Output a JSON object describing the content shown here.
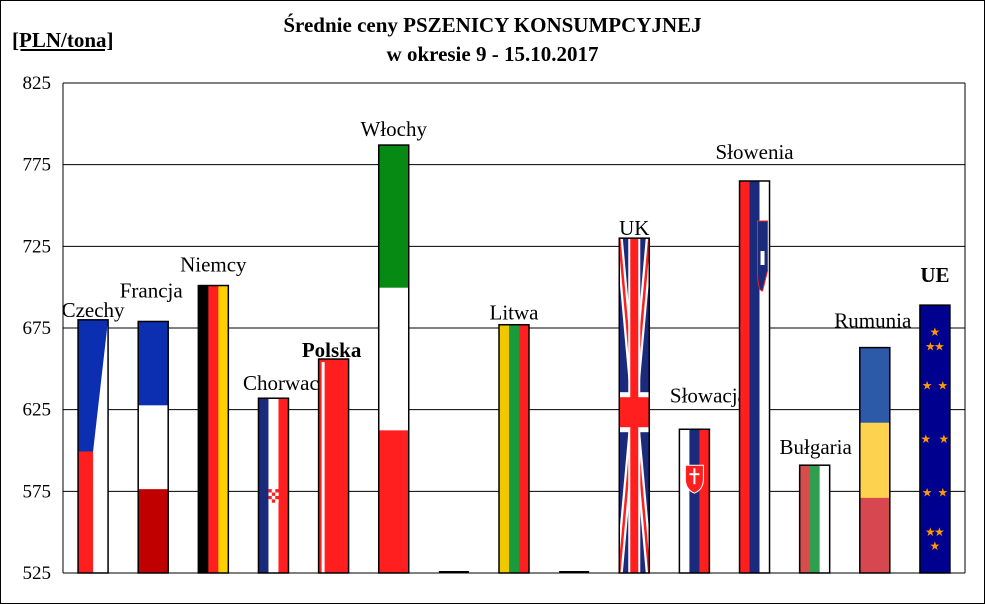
{
  "chart_data": {
    "type": "bar",
    "title_line1": "Średnie ceny PSZENICY KONSUMPCYJNEJ",
    "title_line2": "w okresie  9 - 15.10.2017",
    "ylabel": "[PLN/tona]",
    "ylim": [
      525,
      825
    ],
    "yticks": [
      525,
      575,
      625,
      675,
      725,
      775,
      825
    ],
    "grid": true,
    "categories": [
      "Czechy",
      "Francja",
      "Niemcy",
      "Chorwacja",
      "Polska",
      "Włochy",
      "",
      "Litwa",
      "",
      "UK",
      "Słowacja",
      "Słowenia",
      "Bułgaria",
      "Rumunia",
      "UE"
    ],
    "values": [
      680,
      679,
      701,
      632,
      656,
      787,
      null,
      677,
      null,
      730,
      613,
      765,
      591,
      663,
      689
    ],
    "highlight": {
      "Polska": "bold",
      "UE": "bold-red"
    },
    "colors": {
      "red": "#ff1f1f",
      "darkred": "#c00000",
      "blue": "#0b2fb0",
      "navy": "#1a2a7c",
      "green": "#078a14",
      "yellow": "#ffcc00",
      "gold": "#ffd000",
      "ue_red": "#e00000",
      "eu_blue": "#00008f",
      "star": "#ff9900",
      "romania_blue": "#2c5aa8",
      "romania_yellow": "#fcd24e",
      "romania_red": "#d6474f",
      "bulgaria_green": "#2e9e4f",
      "bulgaria_red": "#d94c4c",
      "lit_green": "#1a9b3a",
      "lit_yellow": "#f0c800"
    }
  }
}
